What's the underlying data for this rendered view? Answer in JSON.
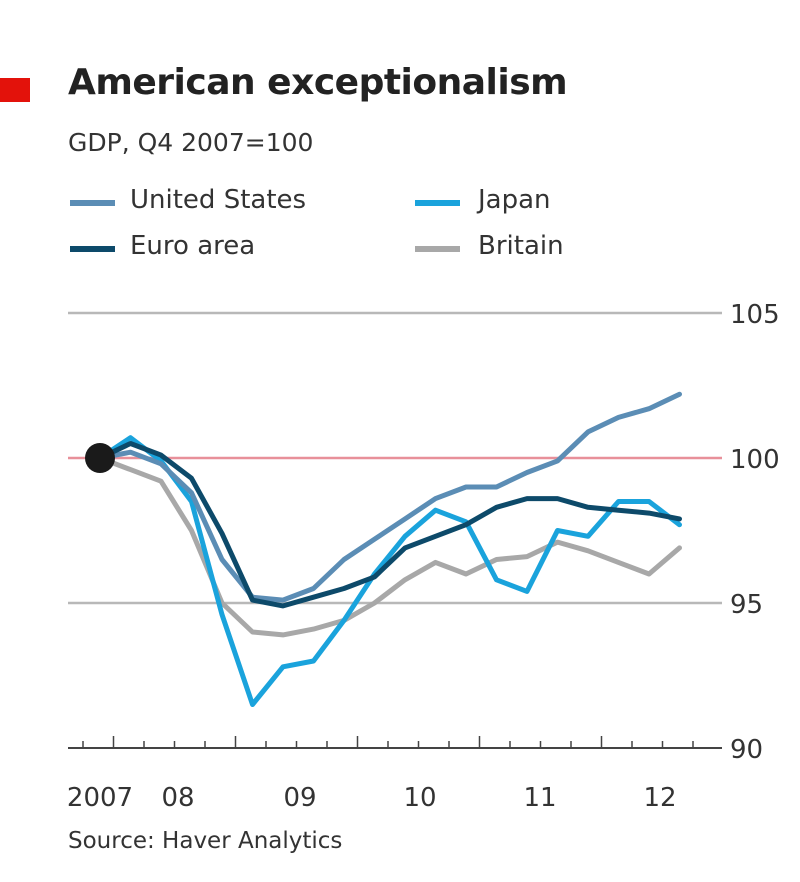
{
  "header": {
    "title": "American exceptionalism",
    "subtitle": "GDP, Q4 2007=100",
    "source": "Source: Haver Analytics",
    "accent": "#e3120b"
  },
  "chart_data": {
    "type": "line",
    "title": "American exceptionalism",
    "subtitle": "GDP, Q4 2007=100",
    "x": [
      "2007Q4",
      "2008Q1",
      "2008Q2",
      "2008Q3",
      "2008Q4",
      "2009Q1",
      "2009Q2",
      "2009Q3",
      "2009Q4",
      "2010Q1",
      "2010Q2",
      "2010Q3",
      "2010Q4",
      "2011Q1",
      "2011Q2",
      "2011Q3",
      "2011Q4",
      "2012Q1",
      "2012Q2",
      "2012Q3"
    ],
    "x_tick_labels": [
      "2007",
      "08",
      "09",
      "10",
      "11",
      "12"
    ],
    "y_tick_labels": [
      "105",
      "100",
      "95",
      "90"
    ],
    "ylim": [
      90,
      105
    ],
    "reference_line": 100,
    "grid": true,
    "legend": "top",
    "series": [
      {
        "name": "United States",
        "color": "#5b8db5",
        "values": [
          100,
          100.2,
          99.8,
          98.8,
          96.5,
          95.2,
          95.1,
          95.5,
          96.5,
          97.2,
          97.9,
          98.6,
          99.0,
          99.0,
          99.5,
          99.9,
          100.9,
          101.4,
          101.7,
          102.2
        ]
      },
      {
        "name": "Japan",
        "color": "#1aa3dc",
        "values": [
          100,
          100.7,
          99.9,
          98.5,
          94.6,
          91.5,
          92.8,
          93.0,
          94.4,
          96.0,
          97.3,
          98.2,
          97.8,
          95.8,
          95.4,
          97.5,
          97.3,
          98.5,
          98.5,
          97.7
        ]
      },
      {
        "name": "Euro area",
        "color": "#0d4a6a",
        "values": [
          100,
          100.5,
          100.1,
          99.3,
          97.4,
          95.1,
          94.9,
          95.2,
          95.5,
          95.9,
          96.9,
          97.3,
          97.7,
          98.3,
          98.6,
          98.6,
          98.3,
          98.2,
          98.1,
          97.9
        ]
      },
      {
        "name": "Britain",
        "color": "#a8a8a8",
        "values": [
          100,
          99.6,
          99.2,
          97.5,
          95.0,
          94.0,
          93.9,
          94.1,
          94.4,
          95.0,
          95.8,
          96.4,
          96.0,
          96.5,
          96.6,
          97.1,
          96.8,
          96.4,
          96.0,
          96.9
        ]
      }
    ]
  }
}
